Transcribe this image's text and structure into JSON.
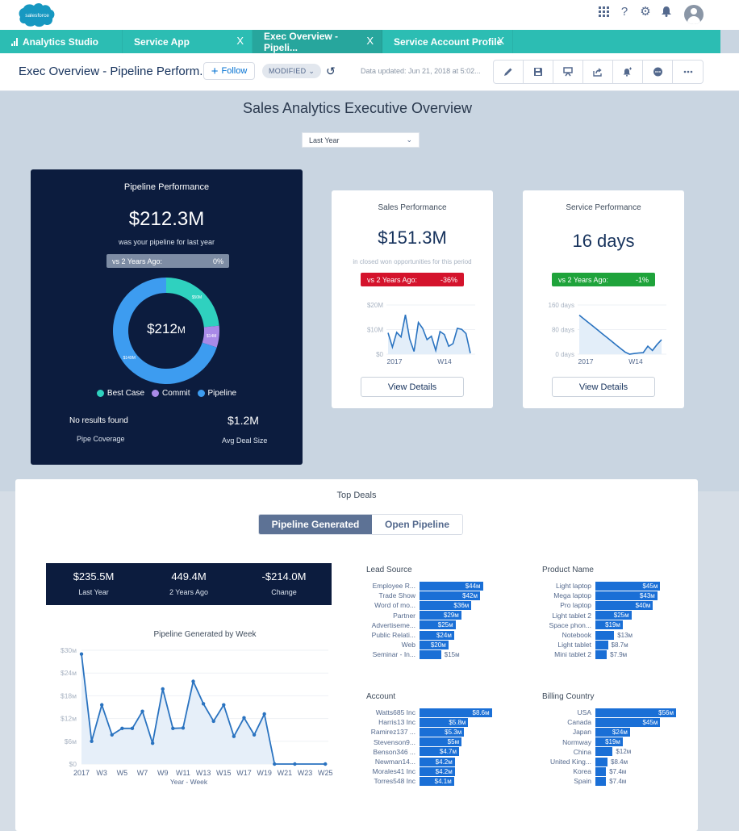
{
  "global_header": {
    "logo_text": "salesforce",
    "icons": [
      "app-launcher-icon",
      "help-icon",
      "setup-gear-icon",
      "notifications-bell-icon"
    ]
  },
  "tabs": [
    {
      "label": "Analytics Studio",
      "icon": "bar-chart-icon",
      "closable": false,
      "active": false
    },
    {
      "label": "Service App",
      "closable": true,
      "active": false
    },
    {
      "label": "Exec Overview - Pipeli...",
      "closable": true,
      "active": true
    },
    {
      "label": "Service Account Profile",
      "closable": true,
      "active": false
    }
  ],
  "tab_close_glyph": "X",
  "dashboard_header": {
    "title": "Exec Overview - Pipeline Perform...",
    "follow_label": "Follow",
    "modified_label": "MODIFIED",
    "data_updated": "Data updated: Jun 21, 2018 at 5:02...",
    "toolbar": [
      "edit-pencil-icon",
      "save-icon",
      "present-icon",
      "share-icon",
      "notify-icon",
      "comment-icon",
      "more-icon"
    ]
  },
  "page": {
    "title": "Sales Analytics Executive Overview",
    "period_select": "Last Year"
  },
  "pipeline_card": {
    "title": "Pipeline Performance",
    "value": "$212.3M",
    "subtitle": "was your pipeline for last year",
    "compare_label": "vs 2 Years Ago:",
    "compare_value": "0%",
    "donut_center": "$212",
    "donut_center_unit": "M",
    "segments": [
      {
        "name": "Best Case",
        "value": 50,
        "label": "$50M",
        "color": "#2fd1bf"
      },
      {
        "name": "Commit",
        "value": 14,
        "label": "$14M",
        "color": "#a98ae8"
      },
      {
        "name": "Pipeline",
        "value": 149,
        "label": "$149M",
        "color": "#3d9cf0"
      }
    ],
    "legend": [
      "Best Case",
      "Commit",
      "Pipeline"
    ],
    "stat_left_value": "No results found",
    "stat_left_label": "Pipe Coverage",
    "stat_right_value": "$1.2M",
    "stat_right_label": "Avg Deal Size"
  },
  "sales_card": {
    "title": "Sales Performance",
    "value": "$151.3M",
    "subtitle": "in closed won opportunities for this period",
    "compare_label": "vs 2 Years Ago:",
    "compare_value": "-36%",
    "badge_color": "#d4132c",
    "yticks": [
      "$20M",
      "$10M",
      "$0"
    ],
    "xticks": [
      "2017",
      "W14"
    ],
    "button": "View Details"
  },
  "service_card": {
    "title": "Service Performance",
    "value": "16 days",
    "compare_label": "vs 2 Years Ago:",
    "compare_value": "-1%",
    "badge_color": "#1fa33b",
    "yticks": [
      "160 days",
      "80 days",
      "0 days"
    ],
    "xticks": [
      "2017",
      "W14"
    ],
    "button": "View Details"
  },
  "top_deals": {
    "title": "Top Deals",
    "toggle": [
      "Pipeline Generated",
      "Open Pipeline"
    ],
    "summary": [
      {
        "value": "$235.5M",
        "label": "Last Year"
      },
      {
        "value": "449.4M",
        "label": "2 Years Ago"
      },
      {
        "value": "-$214.0M",
        "label": "Change"
      }
    ],
    "bar_charts": [
      {
        "title": "Lead Source",
        "max": 56,
        "rows": [
          {
            "label": "Employee R...",
            "value": 44,
            "text": "$44M"
          },
          {
            "label": "Trade Show",
            "value": 42,
            "text": "$42M"
          },
          {
            "label": "Word of mo...",
            "value": 36,
            "text": "$36M"
          },
          {
            "label": "Partner",
            "value": 29,
            "text": "$29M"
          },
          {
            "label": "Advertiseme...",
            "value": 25,
            "text": "$25M"
          },
          {
            "label": "Public Relati...",
            "value": 24,
            "text": "$24M"
          },
          {
            "label": "Web",
            "value": 20,
            "text": "$20M"
          },
          {
            "label": "Seminar - In...",
            "value": 15,
            "text": "$15M"
          }
        ]
      },
      {
        "title": "Product Name",
        "max": 56,
        "rows": [
          {
            "label": "Light laptop",
            "value": 45,
            "text": "$45M"
          },
          {
            "label": "Mega laptop",
            "value": 43,
            "text": "$43M"
          },
          {
            "label": "Pro laptop",
            "value": 40,
            "text": "$40M"
          },
          {
            "label": "Light tablet 2",
            "value": 25,
            "text": "$25M"
          },
          {
            "label": "Space phon...",
            "value": 19,
            "text": "$19M"
          },
          {
            "label": "Notebook",
            "value": 13,
            "text": "$13M"
          },
          {
            "label": "Light tablet",
            "value": 8.7,
            "text": "$8.7M"
          },
          {
            "label": "Mini tablet 2",
            "value": 7.9,
            "text": "$7.9M"
          }
        ]
      },
      {
        "title": "Account",
        "max": 9.6,
        "rows": [
          {
            "label": "Watts685 Inc",
            "value": 8.6,
            "text": "$8.6M"
          },
          {
            "label": "Harris13 Inc",
            "value": 5.8,
            "text": "$5.8M"
          },
          {
            "label": "Ramirez137 ...",
            "value": 5.3,
            "text": "$5.3M"
          },
          {
            "label": "Stevenson9...",
            "value": 5.0,
            "text": "$5M"
          },
          {
            "label": "Benson346 ...",
            "value": 4.7,
            "text": "$4.7M"
          },
          {
            "label": "Newman14...",
            "value": 4.2,
            "text": "$4.2M"
          },
          {
            "label": "Morales41 Inc",
            "value": 4.2,
            "text": "$4.2M"
          },
          {
            "label": "Torres548 Inc",
            "value": 4.1,
            "text": "$4.1M"
          }
        ]
      },
      {
        "title": "Billing Country",
        "max": 56,
        "rows": [
          {
            "label": "USA",
            "value": 56,
            "text": "$56M"
          },
          {
            "label": "Canada",
            "value": 45,
            "text": "$45M"
          },
          {
            "label": "Japan",
            "value": 24,
            "text": "$24M"
          },
          {
            "label": "Normway",
            "value": 19,
            "text": "$19M"
          },
          {
            "label": "China",
            "value": 12,
            "text": "$12M"
          },
          {
            "label": "United King...",
            "value": 8.4,
            "text": "$8.4M"
          },
          {
            "label": "Korea",
            "value": 7.4,
            "text": "$7.4M"
          },
          {
            "label": "Spain",
            "value": 7.4,
            "text": "$7.4M"
          }
        ]
      }
    ]
  },
  "chart_data": [
    {
      "type": "pie",
      "title": "Pipeline Performance",
      "categories": [
        "Best Case",
        "Commit",
        "Pipeline"
      ],
      "values": [
        50,
        14,
        149
      ],
      "unit": "$M",
      "center_label": "$212M",
      "legend_position": "bottom"
    },
    {
      "type": "area",
      "title": "Sales Performance",
      "xlabel": "",
      "ylabel": "",
      "x_ticks": [
        "2017",
        "W14"
      ],
      "y_ticks": [
        "$0",
        "$10M",
        "$20M"
      ],
      "ylim": [
        0,
        20
      ],
      "values": [
        8.7,
        2.9,
        8.9,
        7.0,
        16.0,
        6.2,
        1.1,
        12.9,
        10.5,
        5.9,
        7.3,
        1.5,
        9.2,
        8.0,
        3.2,
        4.3,
        10.5,
        10.1,
        8.4,
        0.4
      ],
      "grid": true
    },
    {
      "type": "area",
      "title": "Service Performance",
      "x_ticks": [
        "2017",
        "W14"
      ],
      "y_ticks": [
        "0 days",
        "80 days",
        "160 days"
      ],
      "ylim": [
        0,
        160
      ],
      "values": [
        127,
        115,
        103,
        91,
        79,
        67,
        55,
        43,
        31,
        19,
        7,
        0,
        2,
        4,
        5,
        26,
        12,
        31,
        47
      ],
      "grid": true
    },
    {
      "type": "area",
      "title": "Pipeline Generated by Week",
      "xlabel": "Year - Week",
      "ylabel": "",
      "categories": [
        "2017",
        "W2",
        "W3",
        "W4",
        "W5",
        "W6",
        "W7",
        "W8",
        "W9",
        "W10",
        "W11",
        "W12",
        "W13",
        "W14",
        "W15",
        "W16",
        "W17",
        "W18",
        "W19",
        "W20",
        "W21",
        "W22",
        "W23",
        "W24",
        "W25"
      ],
      "x_tick_labels": [
        "2017",
        "W3",
        "W5",
        "W7",
        "W9",
        "W11",
        "W13",
        "W15",
        "W17",
        "W19",
        "W21",
        "W23",
        "W25"
      ],
      "values": [
        29.0,
        6.0,
        15.6,
        7.7,
        9.4,
        9.4,
        13.9,
        5.5,
        19.8,
        9.4,
        9.5,
        21.8,
        15.9,
        11.3,
        15.6,
        7.3,
        12.2,
        7.7,
        13.2,
        0,
        0,
        0,
        0,
        0,
        0
      ],
      "y_ticks": [
        "$0",
        "$6M",
        "$12M",
        "$18M",
        "$24M",
        "$30M"
      ],
      "ylim": [
        0,
        30
      ],
      "unit": "$M",
      "grid": true
    },
    {
      "type": "bar",
      "title": "Lead Source",
      "orientation": "horizontal",
      "categories": [
        "Employee R...",
        "Trade Show",
        "Word of mo...",
        "Partner",
        "Advertiseme...",
        "Public Relati...",
        "Web",
        "Seminar - In..."
      ],
      "values": [
        44,
        42,
        36,
        29,
        25,
        24,
        20,
        15
      ],
      "unit": "$M"
    },
    {
      "type": "bar",
      "title": "Product Name",
      "orientation": "horizontal",
      "categories": [
        "Light laptop",
        "Mega laptop",
        "Pro laptop",
        "Light tablet 2",
        "Space phon...",
        "Notebook",
        "Light tablet",
        "Mini tablet 2"
      ],
      "values": [
        45,
        43,
        40,
        25,
        19,
        13,
        8.7,
        7.9
      ],
      "unit": "$M"
    },
    {
      "type": "bar",
      "title": "Account",
      "orientation": "horizontal",
      "categories": [
        "Watts685 Inc",
        "Harris13 Inc",
        "Ramirez137 ...",
        "Stevenson9...",
        "Benson346 ...",
        "Newman14...",
        "Morales41 Inc",
        "Torres548 Inc"
      ],
      "values": [
        8.6,
        5.8,
        5.3,
        5.0,
        4.7,
        4.2,
        4.2,
        4.1
      ],
      "unit": "$M"
    },
    {
      "type": "bar",
      "title": "Billing Country",
      "orientation": "horizontal",
      "categories": [
        "USA",
        "Canada",
        "Japan",
        "Normway",
        "China",
        "United King...",
        "Korea",
        "Spain"
      ],
      "values": [
        56,
        45,
        24,
        19,
        12,
        8.4,
        7.4,
        7.4
      ],
      "unit": "$M"
    }
  ]
}
